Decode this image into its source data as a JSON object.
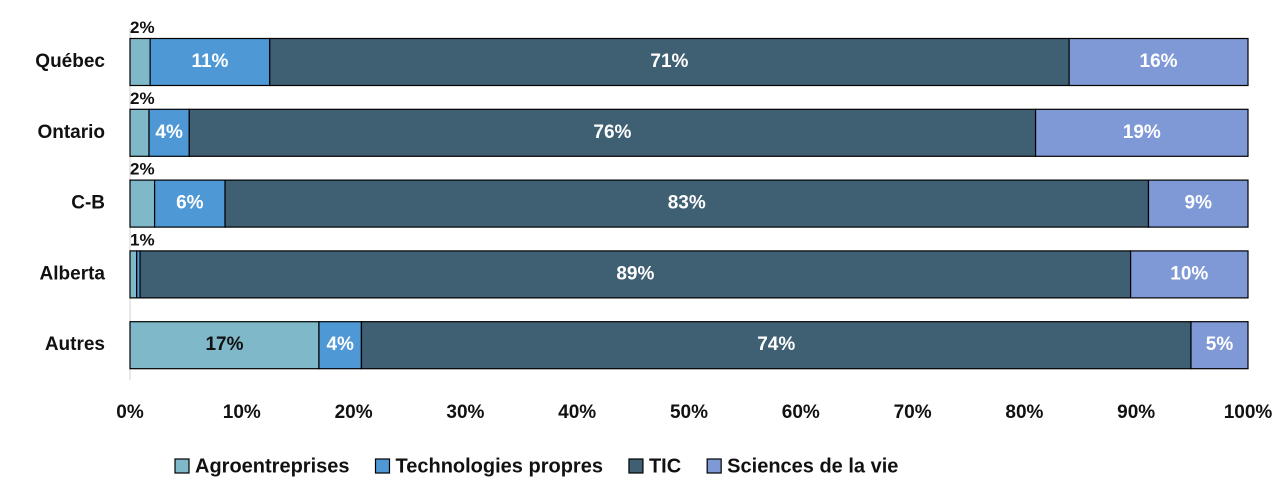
{
  "chart_data": {
    "type": "stacked_barh",
    "categories": [
      "Québec",
      "Ontario",
      "C-B",
      "Alberta",
      "Autres"
    ],
    "series": [
      {
        "name": "Agroentreprises",
        "color": "#7fb8c8",
        "values": [
          1.8,
          1.7,
          2.2,
          0.6,
          16.9
        ],
        "value_labels": [
          "2%",
          "2%",
          "2%",
          "1%",
          "17%"
        ]
      },
      {
        "name": "Technologies propres",
        "color": "#4f98d6",
        "values": [
          10.7,
          3.6,
          6.3,
          0.3,
          3.8
        ],
        "value_labels": [
          "11%",
          "4%",
          "6%",
          null,
          "4%"
        ]
      },
      {
        "name": "TIC",
        "color": "#3f5f73",
        "values": [
          71.5,
          75.7,
          82.6,
          88.6,
          74.2
        ],
        "value_labels": [
          "71%",
          "76%",
          "83%",
          "89%",
          "74%"
        ]
      },
      {
        "name": "Sciences de la vie",
        "color": "#7f99d6",
        "values": [
          16.0,
          19.0,
          8.9,
          10.5,
          5.1
        ],
        "value_labels": [
          "16%",
          "19%",
          "9%",
          "10%",
          "5%"
        ]
      }
    ],
    "xlim": [
      0,
      100
    ],
    "xticks": [
      {
        "value": 0,
        "label": "0%"
      },
      {
        "value": 10,
        "label": "10%"
      },
      {
        "value": 20,
        "label": "20%"
      },
      {
        "value": 30,
        "label": "30%"
      },
      {
        "value": 40,
        "label": "40%"
      },
      {
        "value": 50,
        "label": "50%"
      },
      {
        "value": 60,
        "label": "60%"
      },
      {
        "value": 70,
        "label": "70%"
      },
      {
        "value": 80,
        "label": "80%"
      },
      {
        "value": 90,
        "label": "90%"
      },
      {
        "value": 100,
        "label": "100%"
      }
    ],
    "legend": "bottom"
  }
}
